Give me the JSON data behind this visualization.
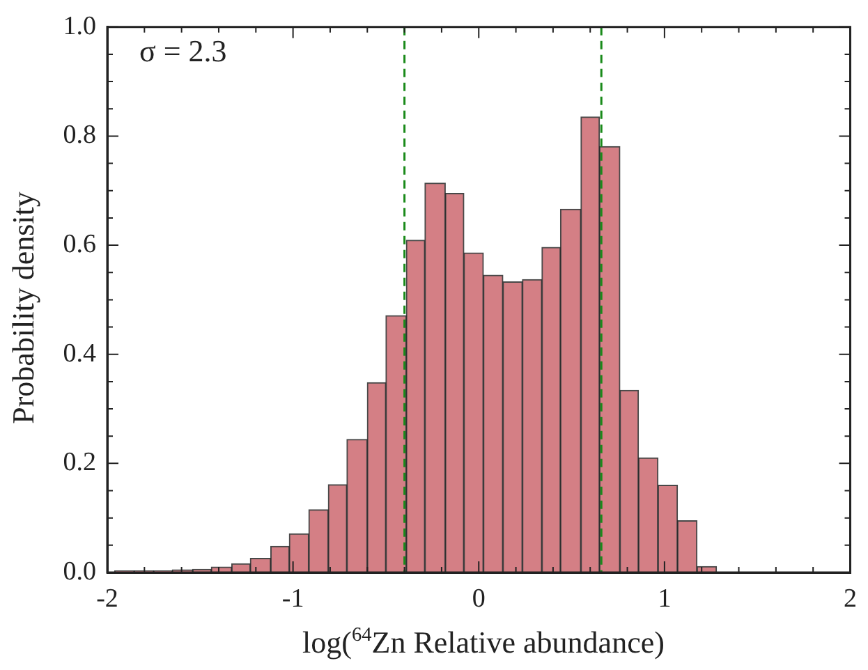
{
  "chart_data": {
    "type": "histogram",
    "xlabel": "log($^{64}$Zn Relative abundance)",
    "ylabel": "Probability density",
    "annotations": [
      "σ = 2.3"
    ],
    "bins": [
      -1.96,
      -1.855,
      -1.75,
      -1.65,
      -1.54,
      -1.44,
      -1.33,
      -1.23,
      -1.12,
      -1.02,
      -0.915,
      -0.81,
      -0.71,
      -0.6,
      -0.5,
      -0.39,
      -0.29,
      -0.18,
      -0.08,
      0.025,
      0.13,
      0.235,
      0.34,
      0.44,
      0.55,
      0.65,
      0.76,
      0.86,
      0.965,
      1.07,
      1.175,
      1.28
    ],
    "values": [
      0.003,
      0.003,
      0.003,
      0.005,
      0.006,
      0.01,
      0.016,
      0.026,
      0.048,
      0.071,
      0.115,
      0.161,
      0.244,
      0.348,
      0.471,
      0.609,
      0.714,
      0.695,
      0.586,
      0.545,
      0.533,
      0.537,
      0.596,
      0.666,
      0.835,
      0.781,
      0.334,
      0.21,
      0.16,
      0.095,
      0.011
    ],
    "color": "#d47f85",
    "xlim": [
      -2,
      2
    ],
    "xticks": [
      -2,
      {
        "value": -1.8,
        "label": null
      },
      {
        "value": -1.6,
        "label": null
      },
      {
        "value": -1.4,
        "label": null
      },
      {
        "value": -1.2,
        "label": null
      },
      -1,
      {
        "value": -0.8,
        "label": null
      },
      {
        "value": -0.6,
        "label": null
      },
      {
        "value": -0.4,
        "label": null
      },
      {
        "value": -0.2,
        "label": null
      },
      0,
      {
        "value": 0.2,
        "label": null
      },
      {
        "value": 0.4,
        "label": null
      },
      {
        "value": 0.6,
        "label": null
      },
      {
        "value": 0.8,
        "label": null
      },
      1,
      {
        "value": 1.2,
        "label": null
      },
      {
        "value": 1.4,
        "label": null
      },
      {
        "value": 1.6,
        "label": null
      },
      {
        "value": 1.8,
        "label": null
      },
      2
    ],
    "ylim": [
      0,
      1
    ],
    "yticks": [
      {
        "value": 0,
        "label": "0.0"
      },
      {
        "value": 0.05,
        "label": null
      },
      {
        "value": 0.1,
        "label": null
      },
      {
        "value": 0.15,
        "label": null
      },
      {
        "value": 0.2,
        "label": "0.2"
      },
      {
        "value": 0.25,
        "label": null
      },
      {
        "value": 0.3,
        "label": null
      },
      {
        "value": 0.35,
        "label": null
      },
      {
        "value": 0.4,
        "label": "0.4"
      },
      {
        "value": 0.45,
        "label": null
      },
      {
        "value": 0.5,
        "label": null
      },
      {
        "value": 0.55,
        "label": null
      },
      {
        "value": 0.6,
        "label": "0.6"
      },
      {
        "value": 0.65,
        "label": null
      },
      {
        "value": 0.7,
        "label": null
      },
      {
        "value": 0.75,
        "label": null
      },
      {
        "value": 0.8,
        "label": "0.8"
      },
      {
        "value": 0.85,
        "label": null
      },
      {
        "value": 0.9,
        "label": null
      },
      {
        "value": 0.95,
        "label": null
      },
      {
        "value": 1,
        "label": "1.0"
      }
    ],
    "ref_lines": [
      {
        "axis": "x",
        "value": -0.4,
        "color": "#1a8a1a",
        "line_style": "dashed"
      },
      {
        "axis": "x",
        "value": 0.66,
        "color": "#1a8a1a",
        "line_style": "dashed"
      }
    ],
    "grid": false,
    "legend": false
  }
}
